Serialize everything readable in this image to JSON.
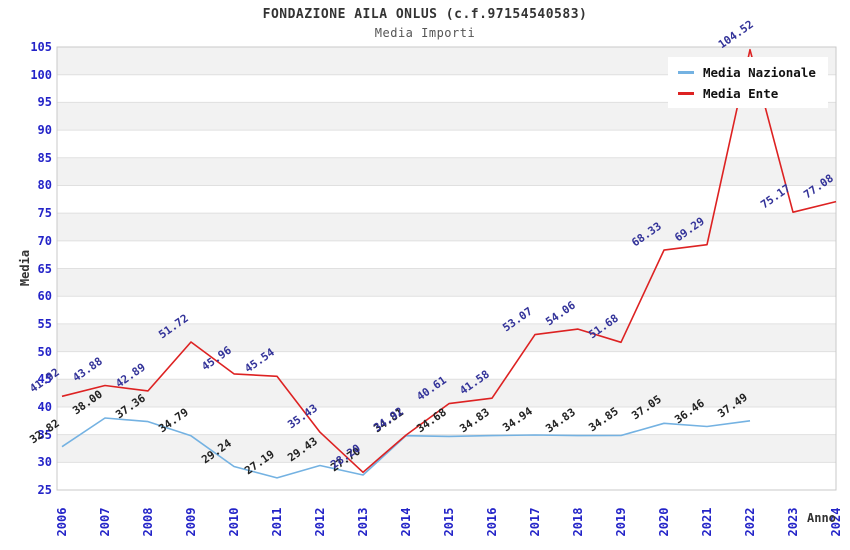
{
  "header": {
    "title": "FONDAZIONE AILA ONLUS (c.f.97154540583)",
    "subtitle": "Media Importi"
  },
  "axes": {
    "x_title": "Anno",
    "y_title": "Media"
  },
  "legend": {
    "items": [
      {
        "label": "Media Nazionale",
        "color": "#74b2e2"
      },
      {
        "label": "Media Ente",
        "color": "#dd2222"
      }
    ]
  },
  "chart_data": {
    "type": "line",
    "title": "FONDAZIONE AILA ONLUS (c.f.97154540583)",
    "subtitle": "Media Importi",
    "xlabel": "Anno",
    "ylabel": "Media",
    "x": [
      2006,
      2007,
      2008,
      2009,
      2010,
      2011,
      2012,
      2013,
      2014,
      2015,
      2016,
      2017,
      2018,
      2019,
      2020,
      2021,
      2022,
      2023,
      2024
    ],
    "series": [
      {
        "name": "Media Nazionale",
        "color": "#74b2e2",
        "label_color": "#222222",
        "values": [
          32.82,
          38.0,
          37.36,
          34.79,
          29.24,
          27.19,
          29.43,
          27.7,
          34.81,
          34.68,
          34.83,
          34.94,
          34.83,
          34.85,
          37.05,
          36.46,
          37.49,
          null,
          null
        ]
      },
      {
        "name": "Media Ente",
        "color": "#dd2222",
        "label_color": "#333399",
        "values": [
          41.92,
          43.88,
          42.89,
          51.72,
          45.96,
          45.54,
          35.43,
          28.2,
          34.92,
          40.61,
          41.58,
          53.07,
          54.06,
          51.68,
          68.33,
          69.29,
          104.52,
          75.17,
          77.08
        ]
      }
    ],
    "ylim": [
      25,
      105
    ],
    "ytick_step": 5,
    "grid": true,
    "band_colors": [
      "#f2f2f2",
      "#ffffff"
    ],
    "gridline_color": "#e0e0e0",
    "border_color": "#c9c9c9",
    "tick_label_color": "#2424c8",
    "legend_position": "top-right"
  }
}
